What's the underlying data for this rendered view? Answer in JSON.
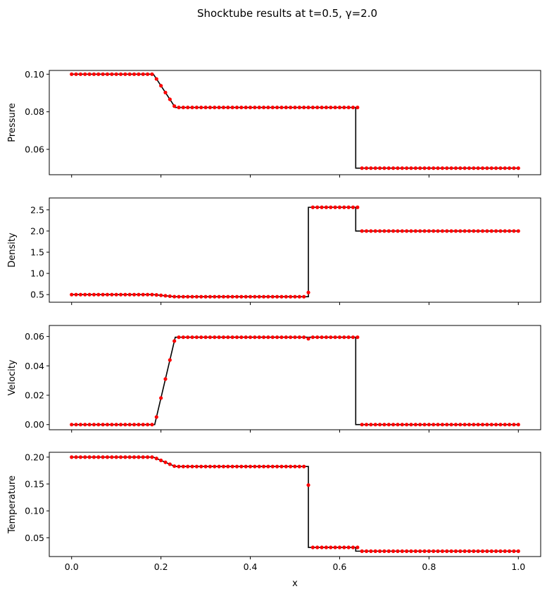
{
  "figure": {
    "title": "Shocktube results at t=0.5, γ=2.0",
    "xlabel": "x"
  },
  "colors": {
    "exact_line": "#000000",
    "numerical_points": "#ff0000"
  },
  "chart_data": [
    {
      "type": "line",
      "ylabel": "Pressure",
      "xlim": [
        -0.05,
        1.05
      ],
      "ylim": [
        0.0465,
        0.102
      ],
      "xticks": [
        0.0,
        0.2,
        0.4,
        0.6,
        0.8,
        1.0
      ],
      "yticks": [
        0.06,
        0.08,
        0.1
      ],
      "ytick_labels": [
        "0.06",
        "0.08",
        "0.10"
      ],
      "exact": {
        "x": [
          0.0,
          0.183,
          0.232,
          0.636,
          0.636,
          1.0
        ],
        "y": [
          0.1,
          0.1,
          0.0823,
          0.0823,
          0.05,
          0.05
        ]
      },
      "numeric_rule": {
        "left": 0.1,
        "right": 0.05,
        "plateaus": [
          [
            0.232,
            0.0823
          ]
        ],
        "ramp": [
          0.183,
          0.232
        ],
        "shock": 0.636,
        "contact": 0.53,
        "contact_value": 0.0823
      }
    },
    {
      "type": "line",
      "ylabel": "Density",
      "xlim": [
        -0.05,
        1.05
      ],
      "ylim": [
        0.32,
        2.78
      ],
      "xticks": [
        0.0,
        0.2,
        0.4,
        0.6,
        0.8,
        1.0
      ],
      "yticks": [
        0.5,
        1.0,
        1.5,
        2.0,
        2.5
      ],
      "ytick_labels": [
        "0.5",
        "1.0",
        "1.5",
        "2.0",
        "2.5"
      ],
      "exact": {
        "x": [
          0.0,
          0.183,
          0.232,
          0.53,
          0.53,
          0.636,
          0.636,
          1.0
        ],
        "y": [
          0.5,
          0.5,
          0.45,
          0.45,
          2.56,
          2.56,
          2.0,
          2.0
        ]
      },
      "numeric_rule": {
        "left": 0.5,
        "right": 2.0,
        "plateaus": [
          [
            0.232,
            0.45
          ],
          [
            0.53,
            2.56
          ]
        ],
        "ramp": [
          0.183,
          0.232
        ],
        "shock": 0.636,
        "contact": 0.53,
        "contact_value": 0.55
      }
    },
    {
      "type": "line",
      "ylabel": "Velocity",
      "xlim": [
        -0.05,
        1.05
      ],
      "ylim": [
        -0.0035,
        0.0675
      ],
      "xticks": [
        0.0,
        0.2,
        0.4,
        0.6,
        0.8,
        1.0
      ],
      "yticks": [
        0.0,
        0.02,
        0.04,
        0.06
      ],
      "ytick_labels": [
        "0.00",
        "0.02",
        "0.04",
        "0.06"
      ],
      "exact": {
        "x": [
          0.0,
          0.186,
          0.232,
          0.636,
          0.636,
          1.0
        ],
        "y": [
          0.0,
          0.0,
          0.0595,
          0.0595,
          0.0,
          0.0
        ]
      },
      "numeric_rule": {
        "left": 0.0,
        "right": 0.0,
        "plateaus": [
          [
            0.232,
            0.0595
          ]
        ],
        "ramp": [
          0.186,
          0.232
        ],
        "shock": 0.636,
        "contact": 0.53,
        "contact_value": 0.0585
      }
    },
    {
      "type": "line",
      "ylabel": "Temperature",
      "xlim": [
        -0.05,
        1.05
      ],
      "ylim": [
        0.015,
        0.209
      ],
      "xticks": [
        0.0,
        0.2,
        0.4,
        0.6,
        0.8,
        1.0
      ],
      "xtick_labels": [
        "0.0",
        "0.2",
        "0.4",
        "0.6",
        "0.8",
        "1.0"
      ],
      "yticks": [
        0.05,
        0.1,
        0.15,
        0.2
      ],
      "ytick_labels": [
        "0.05",
        "0.10",
        "0.15",
        "0.20"
      ],
      "exact": {
        "x": [
          0.0,
          0.183,
          0.232,
          0.53,
          0.53,
          0.636,
          0.636,
          1.0
        ],
        "y": [
          0.2,
          0.2,
          0.1825,
          0.1825,
          0.032,
          0.032,
          0.025,
          0.025
        ]
      },
      "numeric_rule": {
        "left": 0.2,
        "right": 0.025,
        "plateaus": [
          [
            0.232,
            0.1825
          ],
          [
            0.53,
            0.032
          ]
        ],
        "ramp": [
          0.183,
          0.232
        ],
        "shock": 0.636,
        "contact": 0.53,
        "contact_value": 0.148
      }
    }
  ]
}
